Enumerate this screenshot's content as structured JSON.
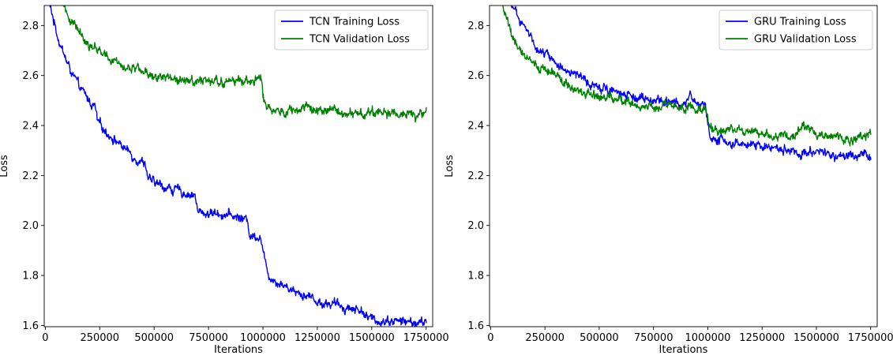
{
  "chart_data": [
    {
      "type": "line",
      "title": "",
      "xlabel": "Iterations",
      "ylabel": "Loss",
      "xlim": [
        -5000,
        1780000
      ],
      "ylim": [
        1.595,
        2.88
      ],
      "xticks": [
        0,
        250000,
        500000,
        750000,
        1000000,
        1250000,
        1500000,
        1750000
      ],
      "xtick_labels": [
        "0",
        "250000",
        "500000",
        "750000",
        "1000000",
        "1250000",
        "1500000",
        "1750000"
      ],
      "yticks": [
        1.6,
        1.8,
        2.0,
        2.2,
        2.4,
        2.6,
        2.8
      ],
      "ytick_labels": [
        "1.6",
        "1.8",
        "2.0",
        "2.2",
        "2.4",
        "2.6",
        "2.8"
      ],
      "grid": false,
      "legend_position": "top-right",
      "series": [
        {
          "name": "TCN Training Loss",
          "color": "#0000ff",
          "x": [
            0,
            30000,
            60000,
            100000,
            150000,
            200000,
            230000,
            240000,
            300000,
            350000,
            400000,
            460000,
            475000,
            500000,
            600000,
            690000,
            700000,
            750000,
            800000,
            900000,
            930000,
            940000,
            990000,
            1000000,
            1010000,
            1030000,
            1060000,
            1100000,
            1150000,
            1200000,
            1240000,
            1250000,
            1300000,
            1400000,
            1460000,
            1480000,
            1520000,
            1600000,
            1700000,
            1750000
          ],
          "y": [
            2.93,
            2.85,
            2.75,
            2.65,
            2.56,
            2.5,
            2.47,
            2.41,
            2.36,
            2.32,
            2.28,
            2.25,
            2.18,
            2.17,
            2.14,
            2.12,
            2.05,
            2.05,
            2.05,
            2.03,
            2.02,
            1.96,
            1.96,
            1.9,
            1.85,
            1.8,
            1.78,
            1.76,
            1.74,
            1.72,
            1.71,
            1.69,
            1.69,
            1.67,
            1.66,
            1.63,
            1.62,
            1.62,
            1.61,
            1.61
          ]
        },
        {
          "name": "TCN Validation Loss",
          "color": "#008000",
          "x": [
            0,
            60000,
            100000,
            150000,
            200000,
            250000,
            300000,
            400000,
            500000,
            600000,
            700000,
            800000,
            900000,
            990000,
            1000000,
            1010000,
            1030000,
            1060000,
            1100000,
            1200000,
            1300000,
            1400000,
            1500000,
            1600000,
            1700000,
            1750000
          ],
          "y": [
            3.1,
            2.93,
            2.85,
            2.78,
            2.73,
            2.7,
            2.66,
            2.63,
            2.6,
            2.59,
            2.58,
            2.57,
            2.58,
            2.59,
            2.52,
            2.48,
            2.46,
            2.47,
            2.46,
            2.46,
            2.46,
            2.45,
            2.45,
            2.45,
            2.44,
            2.45
          ]
        }
      ]
    },
    {
      "type": "line",
      "title": "",
      "xlabel": "Iterations",
      "ylabel": "Loss",
      "xlim": [
        -5000,
        1780000
      ],
      "ylim": [
        1.595,
        2.88
      ],
      "xticks": [
        0,
        250000,
        500000,
        750000,
        1000000,
        1250000,
        1500000,
        1750000
      ],
      "xtick_labels": [
        "0",
        "250000",
        "500000",
        "750000",
        "1000000",
        "1250000",
        "1500000",
        "1750000"
      ],
      "yticks": [
        1.6,
        1.8,
        2.0,
        2.2,
        2.4,
        2.6,
        2.8
      ],
      "ytick_labels": [
        "1.6",
        "1.8",
        "2.0",
        "2.2",
        "2.4",
        "2.6",
        "2.8"
      ],
      "grid": false,
      "legend_position": "top-right",
      "series": [
        {
          "name": "GRU Training Loss",
          "color": "#0000ff",
          "x": [
            0,
            80000,
            100000,
            150000,
            200000,
            250000,
            300000,
            400000,
            500000,
            600000,
            700000,
            800000,
            900000,
            920000,
            950000,
            990000,
            1000000,
            1010000,
            1050000,
            1100000,
            1200000,
            1300000,
            1400000,
            1500000,
            1600000,
            1750000
          ],
          "y": [
            3.1,
            2.95,
            2.88,
            2.8,
            2.73,
            2.69,
            2.65,
            2.6,
            2.56,
            2.53,
            2.51,
            2.49,
            2.48,
            2.54,
            2.48,
            2.48,
            2.4,
            2.36,
            2.35,
            2.33,
            2.32,
            2.31,
            2.3,
            2.29,
            2.28,
            2.28
          ]
        },
        {
          "name": "GRU Validation Loss",
          "color": "#008000",
          "x": [
            0,
            70000,
            100000,
            150000,
            200000,
            250000,
            300000,
            350000,
            400000,
            500000,
            600000,
            700000,
            800000,
            900000,
            990000,
            1000000,
            1010000,
            1050000,
            1100000,
            1200000,
            1300000,
            1400000,
            1440000,
            1500000,
            1600000,
            1700000,
            1750000
          ],
          "y": [
            3.05,
            2.85,
            2.75,
            2.69,
            2.65,
            2.63,
            2.6,
            2.56,
            2.54,
            2.52,
            2.5,
            2.48,
            2.48,
            2.47,
            2.47,
            2.43,
            2.39,
            2.38,
            2.39,
            2.37,
            2.36,
            2.36,
            2.4,
            2.36,
            2.35,
            2.35,
            2.36
          ]
        }
      ]
    }
  ]
}
